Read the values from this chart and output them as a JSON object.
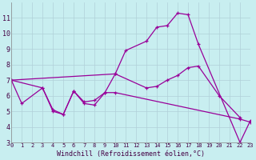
{
  "xlabel": "Windchill (Refroidissement éolien,°C)",
  "background_color": "#c8eef0",
  "grid_color": "#b0d0d8",
  "line_color": "#990099",
  "xlim": [
    0,
    23
  ],
  "ylim": [
    3,
    12
  ],
  "yticks": [
    3,
    4,
    5,
    6,
    7,
    8,
    9,
    10,
    11
  ],
  "xticks": [
    0,
    1,
    2,
    3,
    4,
    5,
    6,
    7,
    8,
    9,
    10,
    11,
    12,
    13,
    14,
    15,
    16,
    17,
    18,
    19,
    20,
    21,
    22,
    23
  ],
  "series": [
    {
      "x": [
        0,
        10,
        11,
        13,
        14,
        15,
        16,
        17,
        18,
        22,
        23
      ],
      "y": [
        7.0,
        7.4,
        8.9,
        9.5,
        10.4,
        10.5,
        11.3,
        11.2,
        9.3,
        3.0,
        4.4
      ]
    },
    {
      "x": [
        0,
        3,
        4,
        5,
        6,
        7,
        8,
        9,
        10,
        13,
        14,
        15,
        16,
        17,
        18,
        20,
        22
      ],
      "y": [
        7.0,
        6.5,
        5.1,
        4.8,
        6.3,
        5.6,
        5.7,
        6.2,
        7.4,
        6.5,
        6.6,
        7.0,
        7.3,
        7.8,
        7.9,
        6.0,
        4.6
      ]
    },
    {
      "x": [
        0,
        1,
        3,
        4,
        5,
        6,
        7,
        8,
        9,
        10,
        22,
        23
      ],
      "y": [
        7.0,
        5.5,
        6.5,
        5.0,
        4.8,
        6.3,
        5.5,
        5.4,
        6.2,
        6.2,
        4.5,
        4.3
      ]
    }
  ]
}
